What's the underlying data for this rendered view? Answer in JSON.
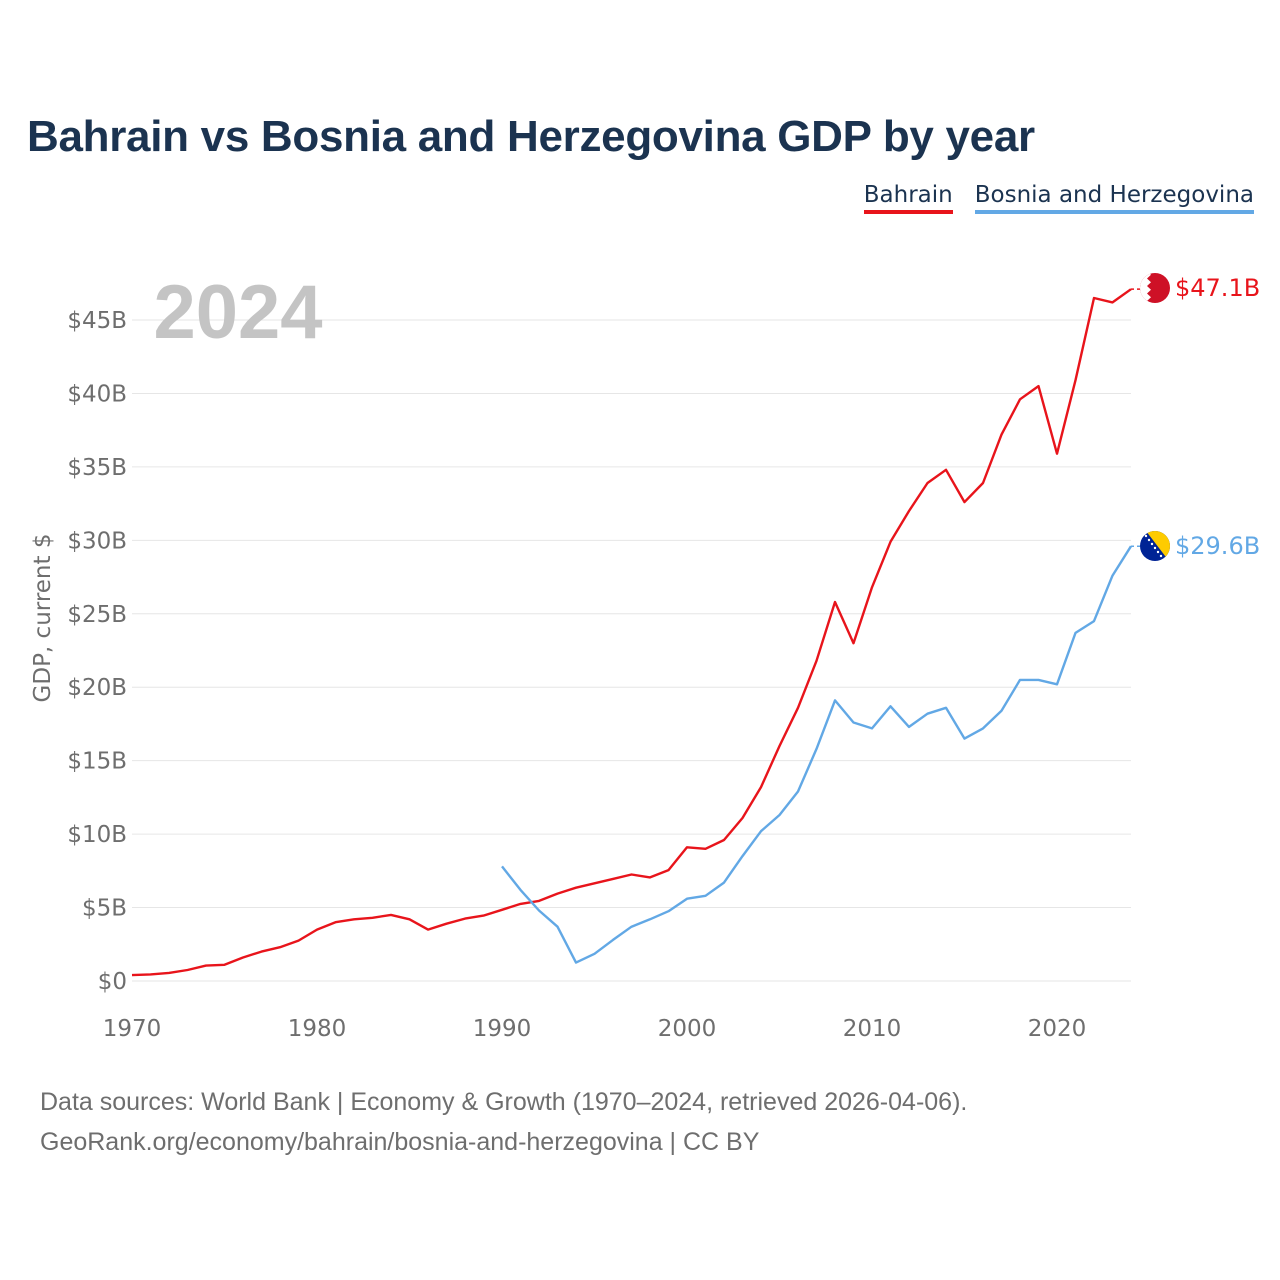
{
  "title": "Bahrain vs Bosnia and Herzegovina GDP by year",
  "legend": {
    "bahrain": "Bahrain",
    "bosnia": "Bosnia and Herzegovina"
  },
  "colors": {
    "bahrain": "#e8141b",
    "bosnia": "#62a8e5",
    "title": "#1b3350",
    "axis_text": "#6e6e6e",
    "year_watermark": "#c4c4c4"
  },
  "footer": {
    "line1": "Data sources: World Bank | Economy & Growth (1970–2024, retrieved 2026-04-06).",
    "line2": "GeoRank.org/economy/bahrain/bosnia-and-herzegovina | CC BY"
  },
  "chart_data": {
    "type": "line",
    "title": "Bahrain vs Bosnia and Herzegovina GDP by year",
    "year_label": "2024",
    "ylabel": "GDP, current $",
    "xlabel": "",
    "xlim": [
      1970,
      2024
    ],
    "ylim": [
      0,
      45
    ],
    "grid": true,
    "legend_position": "top-right",
    "x_ticks": [
      {
        "value": 1970,
        "label": "1970"
      },
      {
        "value": 1980,
        "label": "1980"
      },
      {
        "value": 1990,
        "label": "1990"
      },
      {
        "value": 2000,
        "label": "2000"
      },
      {
        "value": 2010,
        "label": "2010"
      },
      {
        "value": 2020,
        "label": "2020"
      }
    ],
    "y_ticks": [
      {
        "value": 0,
        "label": "$0"
      },
      {
        "value": 5,
        "label": "$5B"
      },
      {
        "value": 10,
        "label": "$10B"
      },
      {
        "value": 15,
        "label": "$15B"
      },
      {
        "value": 20,
        "label": "$20B"
      },
      {
        "value": 25,
        "label": "$25B"
      },
      {
        "value": 30,
        "label": "$30B"
      },
      {
        "value": 35,
        "label": "$35B"
      },
      {
        "value": 40,
        "label": "$40B"
      },
      {
        "value": 45,
        "label": "$45B"
      }
    ],
    "series": [
      {
        "name": "Bahrain",
        "key": "bahrain",
        "end_label": "$47.1B",
        "points": [
          [
            1970,
            0.4
          ],
          [
            1971,
            0.45
          ],
          [
            1972,
            0.55
          ],
          [
            1973,
            0.75
          ],
          [
            1974,
            1.05
          ],
          [
            1975,
            1.1
          ],
          [
            1976,
            1.6
          ],
          [
            1977,
            2.0
          ],
          [
            1978,
            2.3
          ],
          [
            1979,
            2.75
          ],
          [
            1980,
            3.5
          ],
          [
            1981,
            4.0
          ],
          [
            1982,
            4.2
          ],
          [
            1983,
            4.3
          ],
          [
            1984,
            4.5
          ],
          [
            1985,
            4.2
          ],
          [
            1986,
            3.5
          ],
          [
            1987,
            3.9
          ],
          [
            1988,
            4.25
          ],
          [
            1989,
            4.45
          ],
          [
            1990,
            4.85
          ],
          [
            1991,
            5.25
          ],
          [
            1992,
            5.45
          ],
          [
            1993,
            5.95
          ],
          [
            1994,
            6.35
          ],
          [
            1995,
            6.65
          ],
          [
            1996,
            6.95
          ],
          [
            1997,
            7.25
          ],
          [
            1998,
            7.05
          ],
          [
            1999,
            7.55
          ],
          [
            2000,
            9.1
          ],
          [
            2001,
            9.0
          ],
          [
            2002,
            9.6
          ],
          [
            2003,
            11.1
          ],
          [
            2004,
            13.2
          ],
          [
            2005,
            16.0
          ],
          [
            2006,
            18.6
          ],
          [
            2007,
            21.8
          ],
          [
            2008,
            25.8
          ],
          [
            2009,
            23.0
          ],
          [
            2010,
            26.8
          ],
          [
            2011,
            29.9
          ],
          [
            2012,
            32.0
          ],
          [
            2013,
            33.9
          ],
          [
            2014,
            34.8
          ],
          [
            2015,
            32.6
          ],
          [
            2016,
            33.9
          ],
          [
            2017,
            37.2
          ],
          [
            2018,
            39.6
          ],
          [
            2019,
            40.5
          ],
          [
            2020,
            35.9
          ],
          [
            2021,
            40.9
          ],
          [
            2022,
            46.5
          ],
          [
            2023,
            46.2
          ],
          [
            2024,
            47.1
          ]
        ]
      },
      {
        "name": "Bosnia and Herzegovina",
        "key": "bosnia",
        "end_label": "$29.6B",
        "points": [
          [
            1990,
            7.8
          ],
          [
            1991,
            6.2
          ],
          [
            1992,
            4.8
          ],
          [
            1993,
            3.7
          ],
          [
            1994,
            1.25
          ],
          [
            1995,
            1.85
          ],
          [
            1996,
            2.8
          ],
          [
            1997,
            3.7
          ],
          [
            1998,
            4.2
          ],
          [
            1999,
            4.75
          ],
          [
            2000,
            5.6
          ],
          [
            2001,
            5.8
          ],
          [
            2002,
            6.7
          ],
          [
            2003,
            8.5
          ],
          [
            2004,
            10.2
          ],
          [
            2005,
            11.3
          ],
          [
            2006,
            12.9
          ],
          [
            2007,
            15.8
          ],
          [
            2008,
            19.1
          ],
          [
            2009,
            17.6
          ],
          [
            2010,
            17.2
          ],
          [
            2011,
            18.7
          ],
          [
            2012,
            17.3
          ],
          [
            2013,
            18.2
          ],
          [
            2014,
            18.6
          ],
          [
            2015,
            16.5
          ],
          [
            2016,
            17.2
          ],
          [
            2017,
            18.4
          ],
          [
            2018,
            20.5
          ],
          [
            2019,
            20.5
          ],
          [
            2020,
            20.2
          ],
          [
            2021,
            23.7
          ],
          [
            2022,
            24.5
          ],
          [
            2023,
            27.6
          ],
          [
            2024,
            29.6
          ]
        ]
      }
    ]
  }
}
